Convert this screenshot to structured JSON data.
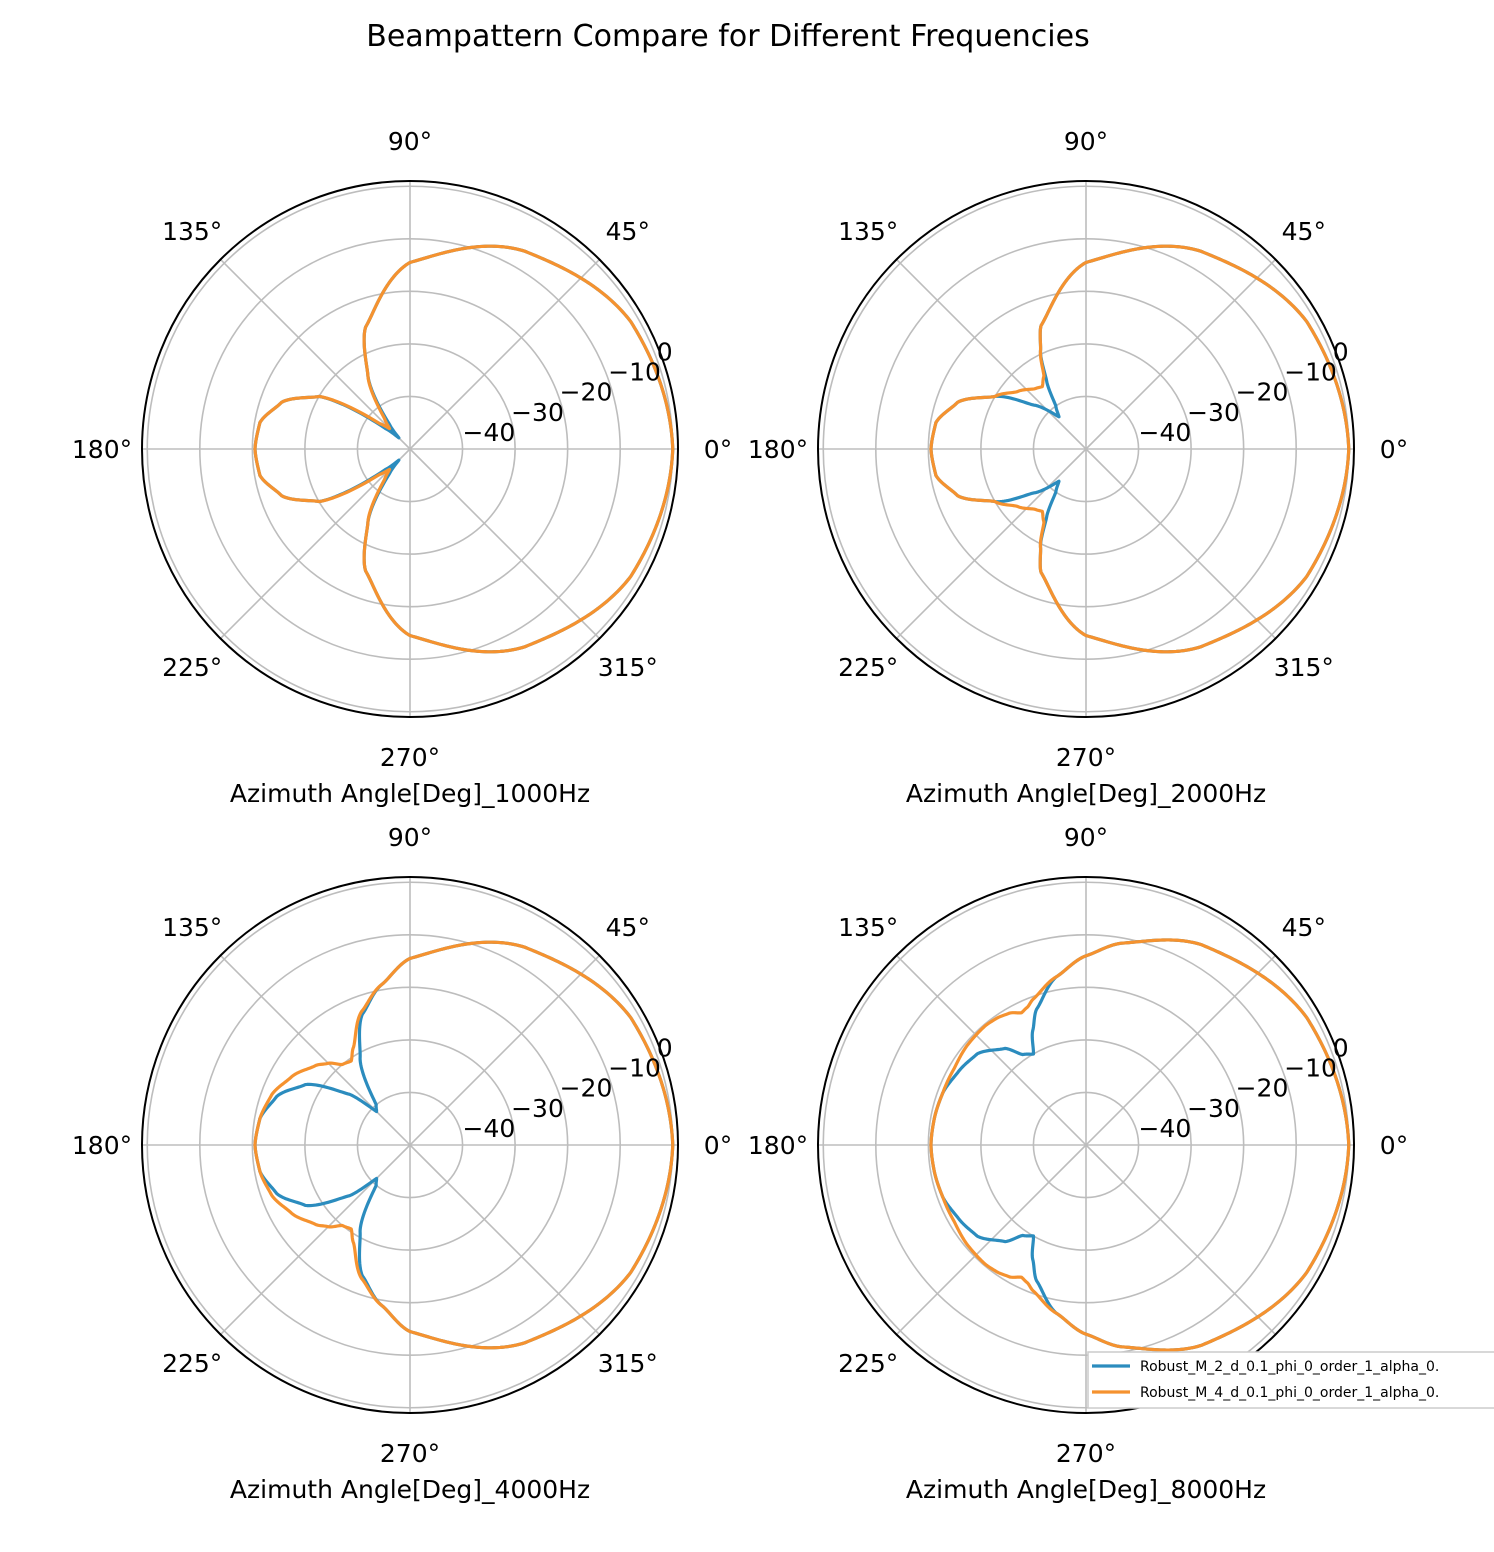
{
  "figure": {
    "title": "Beampattern Compare for Different Frequencies",
    "theta_tick_labels": [
      "0°",
      "45°",
      "90°",
      "135°",
      "180°",
      "225°",
      "270°",
      "315°"
    ],
    "r_tick_labels": [
      "−40",
      "−30",
      "−20",
      "−10",
      "0"
    ],
    "legend": {
      "placement": "lower-right of last subplot, clipped at figure edge",
      "entries": [
        "Robust_M_2_d_0.1_phi_0_order_1_alpha_0.",
        "Robust_M_4_d_0.1_phi_0_order_1_alpha_0."
      ]
    },
    "colors": {
      "series_1": "#2b8cbe",
      "series_2": "#f5922f",
      "grid": "#bdbdbd",
      "frame": "#000000"
    }
  },
  "chart_data": [
    {
      "type": "polar-line",
      "xlabel": "Azimuth Angle[Deg]_1000Hz",
      "theta_unit": "deg",
      "rlim": [
        -50,
        1
      ],
      "r_ticks": [
        -40,
        -30,
        -20,
        -10,
        0
      ],
      "grid": true,
      "series": [
        {
          "name": "Robust_M_2_d_0.1_phi_0_order_1_alpha_0.",
          "theta": [
            0,
            30,
            60,
            90,
            110,
            120,
            130,
            135,
            140,
            150,
            160,
            170,
            180
          ],
          "r": [
            0,
            -1.5,
            -6.5,
            -14.5,
            -25.3,
            -34,
            -44,
            -47,
            -44,
            -30,
            -24,
            -21,
            -20.5
          ]
        },
        {
          "name": "Robust_M_4_d_0.1_phi_0_order_1_alpha_0.",
          "theta": [
            0,
            30,
            60,
            90,
            110,
            120,
            130,
            135,
            140,
            150,
            160,
            170,
            180
          ],
          "r": [
            0,
            -1.5,
            -6.5,
            -14.5,
            -25.3,
            -34,
            -42.5,
            -44.5,
            -42.5,
            -30,
            -24,
            -21,
            -20.5
          ]
        }
      ]
    },
    {
      "type": "polar-line",
      "xlabel": "Azimuth Angle[Deg]_2000Hz",
      "theta_unit": "deg",
      "rlim": [
        -50,
        1
      ],
      "r_ticks": [
        -40,
        -30,
        -20,
        -10,
        0
      ],
      "grid": true,
      "series": [
        {
          "name": "Robust_M_2_d_0.1_phi_0_order_1_alpha_0.",
          "theta": [
            0,
            30,
            60,
            90,
            110,
            115,
            120,
            125,
            130,
            140,
            150,
            160,
            170,
            180
          ],
          "r": [
            0,
            -1.5,
            -6.5,
            -14.5,
            -25,
            -29.5,
            -35,
            -40,
            -42,
            -37,
            -30,
            -24,
            -21,
            -20.5
          ]
        },
        {
          "name": "Robust_M_4_d_0.1_phi_0_order_1_alpha_0.",
          "theta": [
            0,
            30,
            60,
            90,
            110,
            115,
            120,
            125,
            130,
            140,
            150,
            160,
            170,
            180
          ],
          "r": [
            0,
            -1.5,
            -6.5,
            -14.5,
            -25,
            -29.5,
            -34,
            -35.5,
            -35,
            -33,
            -30,
            -24,
            -21,
            -20.5
          ]
        }
      ]
    },
    {
      "type": "polar-line",
      "xlabel": "Azimuth Angle[Deg]_4000Hz",
      "theta_unit": "deg",
      "rlim": [
        -50,
        1
      ],
      "r_ticks": [
        -40,
        -30,
        -20,
        -10,
        0
      ],
      "grid": true,
      "series": [
        {
          "name": "Robust_M_2_d_0.1_phi_0_order_1_alpha_0.",
          "theta": [
            0,
            30,
            60,
            90,
            100,
            110,
            120,
            130,
            135,
            140,
            150,
            160,
            170,
            180
          ],
          "r": [
            0,
            -1.5,
            -6.5,
            -14.5,
            -19,
            -23.5,
            -31,
            -40,
            -41,
            -35,
            -27,
            -23,
            -21,
            -20.5
          ]
        },
        {
          "name": "Robust_M_4_d_0.1_phi_0_order_1_alpha_0.",
          "theta": [
            0,
            30,
            60,
            90,
            100,
            110,
            120,
            125,
            130,
            135,
            140,
            150,
            160,
            170,
            180
          ],
          "r": [
            0,
            -1.5,
            -6.5,
            -14.5,
            -19,
            -23,
            -28.5,
            -30.5,
            -30,
            -28,
            -26.5,
            -24,
            -22,
            -21,
            -20.5
          ]
        }
      ]
    },
    {
      "type": "polar-line",
      "xlabel": "Azimuth Angle[Deg]_8000Hz",
      "theta_unit": "deg",
      "rlim": [
        -50,
        1
      ],
      "r_ticks": [
        -40,
        -30,
        -20,
        -10,
        0
      ],
      "grid": true,
      "series": [
        {
          "name": "Robust_M_2_d_0.1_phi_0_order_1_alpha_0.",
          "theta": [
            0,
            30,
            60,
            80,
            90,
            100,
            110,
            115,
            120,
            125,
            130,
            140,
            150,
            160,
            170,
            180
          ],
          "r": [
            0,
            -1.5,
            -6,
            -11,
            -14,
            -17.5,
            -22.5,
            -26,
            -30,
            -29,
            -26,
            -23,
            -22,
            -21,
            -20.7,
            -20.5
          ]
        },
        {
          "name": "Robust_M_4_d_0.1_phi_0_order_1_alpha_0.",
          "theta": [
            0,
            30,
            60,
            80,
            90,
            100,
            110,
            113,
            116,
            120,
            125,
            130,
            140,
            150,
            160,
            170,
            180
          ],
          "r": [
            0,
            -1.5,
            -6,
            -11,
            -14,
            -17.5,
            -20.5,
            -21.5,
            -22,
            -21,
            -20.5,
            -20.3,
            -20.5,
            -21,
            -21,
            -20.7,
            -20.5
          ]
        }
      ]
    }
  ]
}
